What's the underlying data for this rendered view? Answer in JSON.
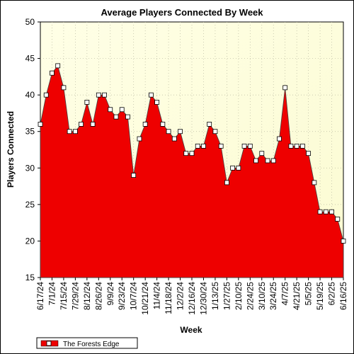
{
  "chart_data": {
    "type": "area",
    "title": "Average Players Connected By Week",
    "xlabel": "Week",
    "ylabel": "Players Connected",
    "ylim": [
      15,
      50
    ],
    "yticks": [
      15,
      20,
      25,
      30,
      35,
      40,
      45,
      50
    ],
    "grid": true,
    "legend_position": "bottom-left",
    "x_tick_labels": [
      "6/17/24",
      "7/1/24",
      "7/15/24",
      "7/29/24",
      "8/12/24",
      "8/26/24",
      "9/9/24",
      "9/23/24",
      "10/7/24",
      "10/21/24",
      "11/4/24",
      "11/18/24",
      "12/2/24",
      "12/16/24",
      "12/30/24",
      "1/13/25",
      "1/27/25",
      "2/10/25",
      "2/24/25",
      "3/10/25",
      "3/24/25",
      "4/7/25",
      "4/21/25",
      "5/5/25",
      "5/19/25",
      "6/2/25",
      "6/16/25"
    ],
    "series": [
      {
        "name": "The Forests Edge",
        "color": "#ee0000",
        "values": [
          36,
          40,
          43,
          44,
          41,
          35,
          35,
          36,
          39,
          36,
          40,
          40,
          38,
          37,
          38,
          37,
          29,
          34,
          36,
          40,
          39,
          36,
          35,
          34,
          35,
          32,
          32,
          33,
          33,
          36,
          35,
          33,
          28,
          30,
          30,
          33,
          33,
          31,
          32,
          31,
          31,
          34,
          41,
          33,
          33,
          33,
          32,
          28,
          24,
          24,
          24,
          23,
          20
        ]
      }
    ]
  }
}
